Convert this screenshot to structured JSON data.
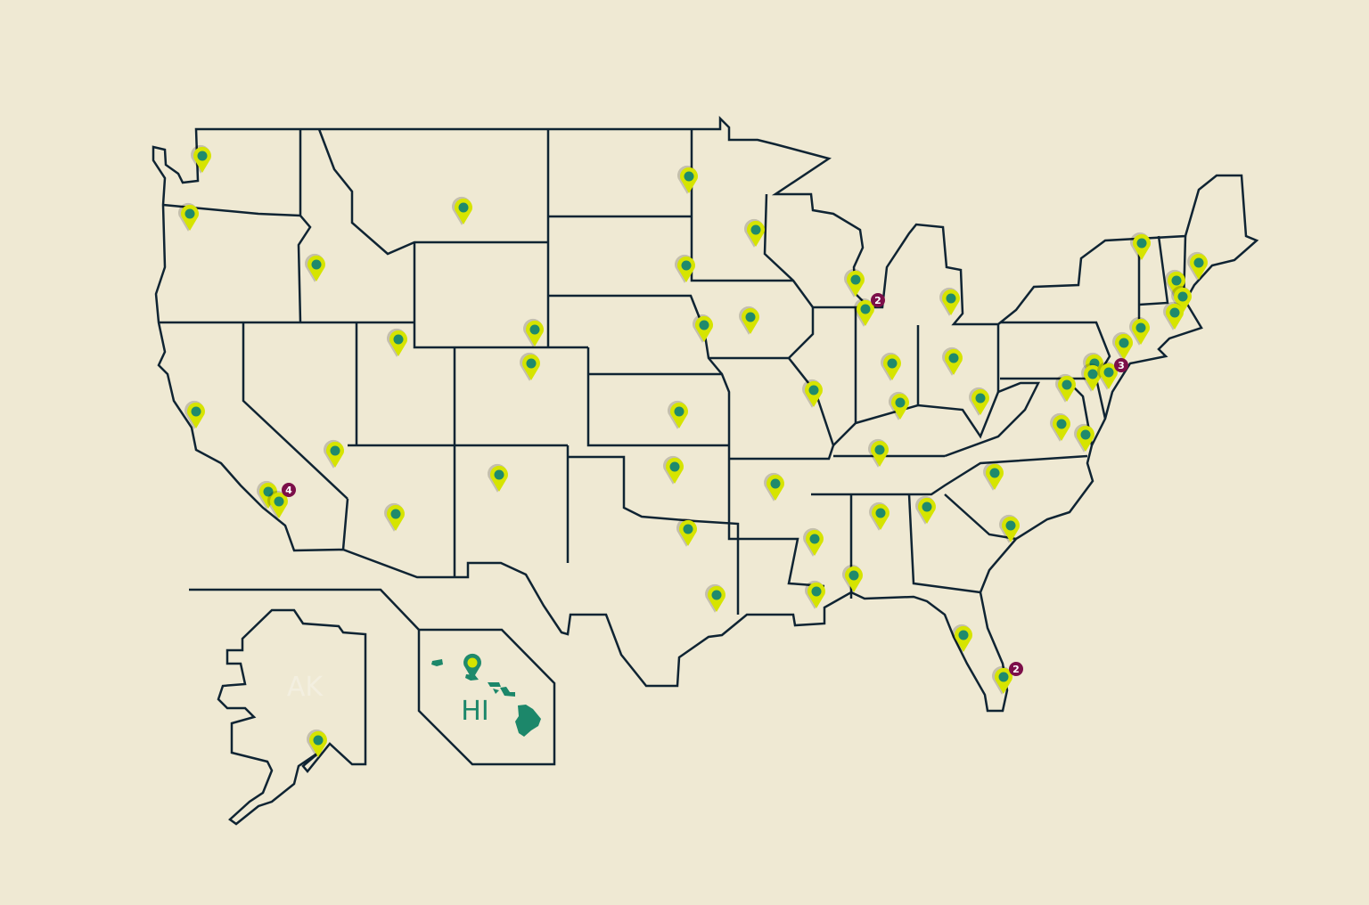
{
  "map": {
    "colors": {
      "background": "#efe9d3",
      "land_light": "#4f9f87",
      "land_dark": "#15826a",
      "border": "#0f2433",
      "pin": "#d6e400",
      "pin_center": "#1f8a6c",
      "cluster_badge": "#7c0f49"
    },
    "insets": {
      "alaska_label": "AK",
      "hawaii_label": "HI"
    },
    "clusters": [
      {
        "label": "2"
      },
      {
        "label": "3"
      },
      {
        "label": "4"
      },
      {
        "label": "2"
      }
    ]
  }
}
